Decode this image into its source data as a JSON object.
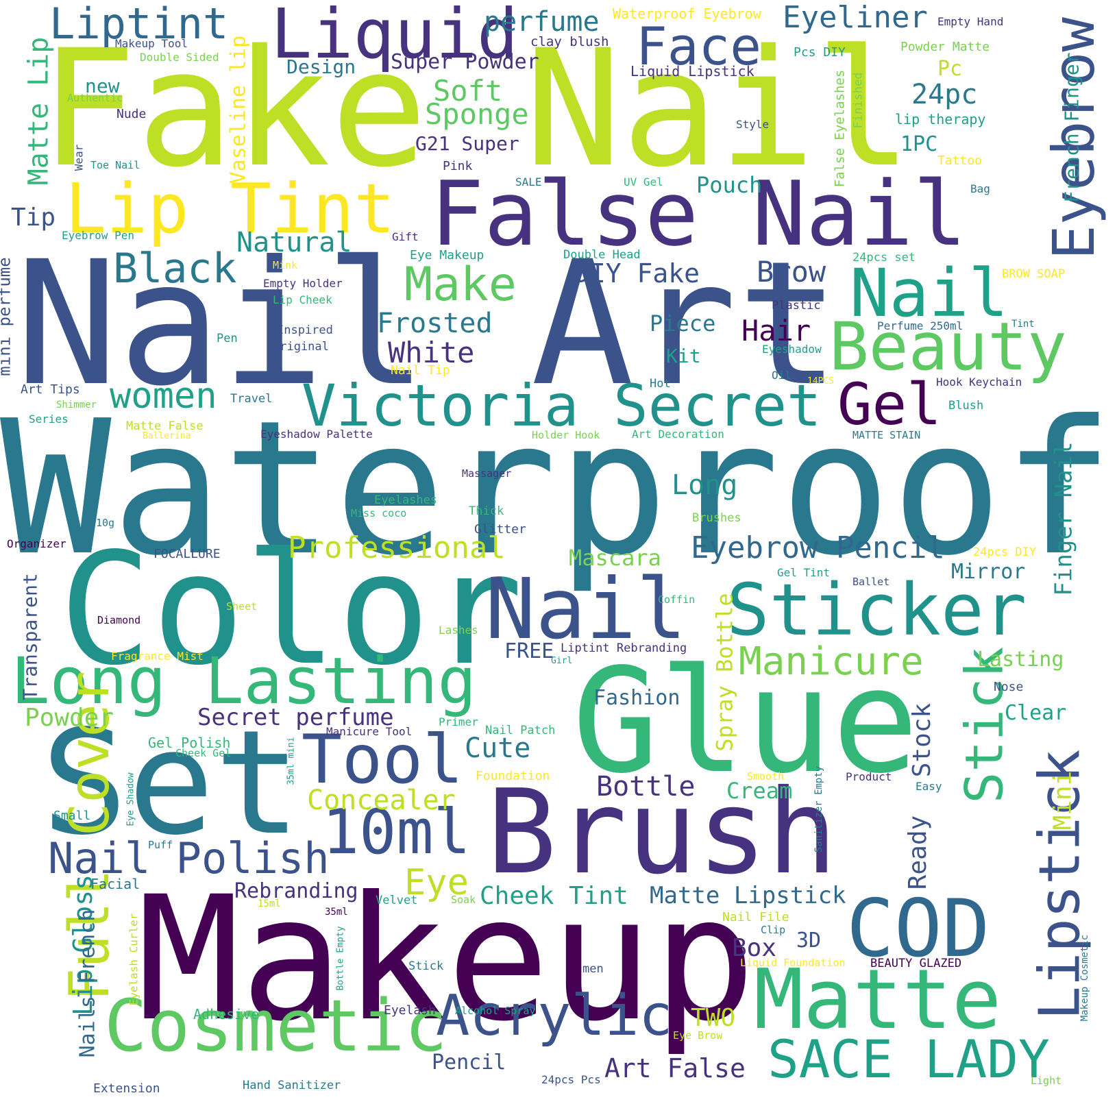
{
  "cloud": {
    "words": {
      "fake_nail": "Fake Nail",
      "nail_art": "Nail Art",
      "waterproof": "Waterproof",
      "color": "Color",
      "glue": "Glue",
      "set": "Set",
      "brush": "Brush",
      "makeup": "Makeup",
      "false_nail": "False Nail",
      "liquid": "Liquid",
      "face": "Face",
      "eyebrow": "Eyebrow",
      "lip_tint": "Lip Tint",
      "liptint": "Liptint",
      "beauty": "Beauty",
      "nail_top": "Nail",
      "victoria_secret": "Victoria Secret",
      "gel": "Gel",
      "nail_mid": "Nail",
      "sticker": "Sticker",
      "long_lasting": "Long Lasting",
      "cod": "COD",
      "matte": "Matte",
      "lipstick": "Lipstick",
      "cosmetic": "Cosmetic",
      "acrylic": "Acrylic",
      "sace_lady": "SACE LADY",
      "tool": "Tool",
      "ten_ml": "10ml",
      "nail_polish": "Nail Polish",
      "full_cover": "Full Cover",
      "make": "Make",
      "black": "Black",
      "women": "women",
      "professional": "Professional",
      "eyebrow_pencil": "Eyebrow Pencil",
      "manicure": "Manicure",
      "perfume": "perfume",
      "eyeliner": "Eyeliner",
      "soft": "Soft",
      "sponge": "Sponge",
      "matte_lip": "Matte Lip",
      "vaseline_lip": "Vaseline lip",
      "natural": "Natural",
      "frosted": "Frosted",
      "white": "White",
      "brow": "Brow",
      "diy_fake": "DIY Fake",
      "hair": "Hair",
      "piece": "Piece",
      "twenty_four_pc": "24pc",
      "pc": "Pc",
      "one_pc": "1PC",
      "pouch": "Pouch",
      "super_powder": "Super Powder",
      "g21_super": "G21 Super",
      "design": "Design",
      "new": "new",
      "tip": "Tip",
      "long": "Long",
      "mascara": "Mascara",
      "mirror": "Mirror",
      "finger_nail": "Finger Nail",
      "french_finger": "French Finger",
      "stick": "Stick",
      "stock": "Stock",
      "ready": "Ready",
      "mini": "Mini",
      "secret_perfume": "Secret perfume",
      "concealer": "Concealer",
      "powder": "Powder",
      "cute": "Cute",
      "bottle": "Bottle",
      "cream": "Cream",
      "spray_bottle": "Spray Bottle",
      "fashion": "Fashion",
      "eye": "Eye",
      "cheek_tint": "Cheek Tint",
      "matte_lipstick": "Matte Lipstick",
      "box": "Box",
      "three_d": "3D",
      "rebranding": "Rebranding",
      "lip_gloss": "Lip Gloss",
      "nails_french": "Nails French",
      "two": "TWO",
      "art_false": "Art False",
      "pencil": "Pencil",
      "transparent": "Transparent",
      "lasting": "Lasting",
      "clear": "Clear",
      "kit": "Kit",
      "mini_perfume": "mini perfume",
      "free": "FREE",
      "liptint_rebranding": "Liptint Rebranding",
      "waterproof_eyebrow": "Waterproof Eyebrow",
      "clay_blush": "clay blush",
      "empty_hand": "Empty Hand",
      "pcs_diy": "Pcs DIY",
      "powder_matte": "Powder Matte",
      "liquid_lipstick": "Liquid Lipstick",
      "lip_therapy": "lip therapy",
      "false_eyelashes": "False Eyelashes",
      "finished": "Finished",
      "style": "Style",
      "tattoo": "Tattoo",
      "bag": "Bag",
      "makeup_tool": "Makeup Tool",
      "double_sided": "Double Sided",
      "authentic": "Authentic",
      "nude": "Nude",
      "wear": "Wear",
      "toe_nail": "Toe Nail",
      "pink": "Pink",
      "sale": "SALE",
      "uv_gel": "UV Gel",
      "gift": "Gift",
      "eyebrow_pen": "Eyebrow Pen",
      "mink": "Mink",
      "eye_makeup": "Eye Makeup",
      "double_head": "Double Head",
      "twenty_four_pcs_set": "24pcs set",
      "brow_soap": "BROW SOAP",
      "empty_holder": "Empty Holder",
      "plastic": "Plastic",
      "lip_cheek": "Lip Cheek",
      "inspired": "Inspired",
      "original": "original",
      "pen": "Pen",
      "perfume_250ml": "Perfume 250ml",
      "tint": "Tint",
      "eyeshadow": "Eyeshadow",
      "nail_tip": "Nail Tip",
      "oil": "Oil",
      "fourteen_pcs": "14PCS",
      "hot": "Hot",
      "hook_keychain": "Hook Keychain",
      "art_tips": "Art Tips",
      "travel": "Travel",
      "shimmer": "Shimmer",
      "blush": "Blush",
      "series": "Series",
      "matte_false": "Matte False",
      "ballerina": "Ballerina",
      "eyeshadow_palette": "Eyeshadow Palette",
      "holder_hook": "Holder Hook",
      "art_decoration": "Art Decoration",
      "matte_stain": "MATTE STAIN",
      "massager": "Massager",
      "eyelashes": "Eyelashes",
      "miss_coco": "Miss coco",
      "thick": "Thick",
      "brushes": "Brushes",
      "ten_g": "10g",
      "glitter": "Glitter",
      "organizer": "Organizer",
      "focallure": "FOCALLURE",
      "twenty_four_pcs_diy": "24pcs DIY",
      "gel_tint": "Gel Tint",
      "ballet": "Ballet",
      "sheet": "Sheet",
      "coffin": "Coffin",
      "diamond": "Diamond",
      "lashes": "Lashes",
      "fragrance_mist": "Fragrance Mist",
      "girl": "Girl",
      "nose": "Nose",
      "primer": "Primer",
      "manicure_tool": "Manicure Tool",
      "nail_patch": "Nail Patch",
      "gel_polish": "Gel Polish",
      "cheek_gel": "Cheek Gel",
      "thirty_five_ml_mini": "35ml mini",
      "foundation": "Foundation",
      "smooth": "Smooth",
      "product": "Product",
      "easy": "Easy",
      "sanitizer_empty": "Sanitizer Empty",
      "eye_shadow": "Eye Shadow",
      "small": "Small",
      "puff": "Puff",
      "facial": "Facial",
      "fifteen_ml": "15ml",
      "thirty_five_ml": "35ml",
      "velvet": "Velvet",
      "soak": "Soak",
      "nail_file": "Nail File",
      "clip": "Clip",
      "bottle_empty": "Bottle Empty",
      "eyelash_curler": "Eyelash Curler",
      "stick_small": "Stick",
      "men": "men",
      "liquid_foundation": "Liquid Foundation",
      "beauty_glazed": "BEAUTY GLAZED",
      "makeup_cosmetic": "Makeup Cosmetic",
      "adhesive": "Adhesive",
      "eyelash": "Eyelash",
      "alcohol_spray": "Alcohol Spray",
      "eye_brow": "Eye Brow",
      "light": "Light",
      "extension": "Extension",
      "hand_sanitizer": "Hand Sanitizer",
      "twenty_four_pcs": "24pcs Pcs"
    }
  }
}
